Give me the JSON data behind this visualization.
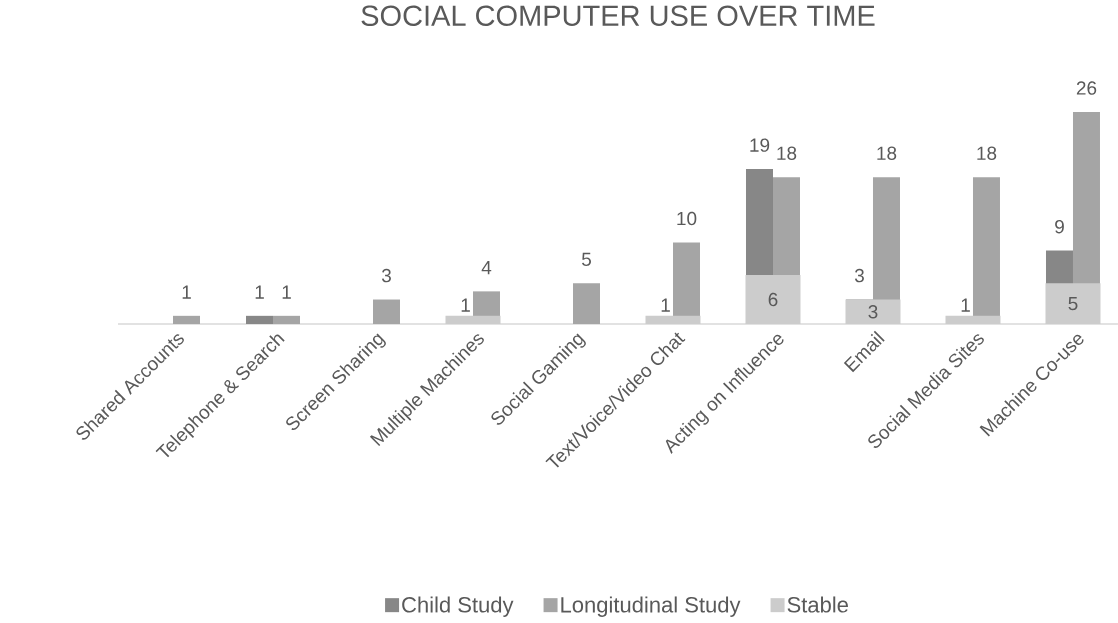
{
  "chart_data": {
    "type": "bar",
    "title": "SOCIAL COMPUTER USE OVER TIME",
    "categories": [
      "Shared Accounts",
      "Telephone & Search",
      "Screen Sharing",
      "Multiple Machines",
      "Social Gaming",
      "Text/Voice/Video Chat",
      "Acting on Influence",
      "Email",
      "Social Media Sites",
      "Machine Co-use"
    ],
    "series": [
      {
        "name": "Child Study",
        "color": "#878787",
        "values": [
          null,
          1,
          null,
          null,
          null,
          null,
          19,
          3,
          null,
          9
        ]
      },
      {
        "name": "Longitudinal Study",
        "color": "#a5a5a5",
        "values": [
          1,
          1,
          3,
          4,
          5,
          10,
          18,
          18,
          18,
          26
        ]
      },
      {
        "name": "Stable",
        "color": "#cccccc",
        "values": [
          null,
          null,
          null,
          1,
          null,
          1,
          6,
          3,
          1,
          5
        ]
      }
    ],
    "tick_labels": "x",
    "data_labels": true,
    "legend": "bottom"
  }
}
